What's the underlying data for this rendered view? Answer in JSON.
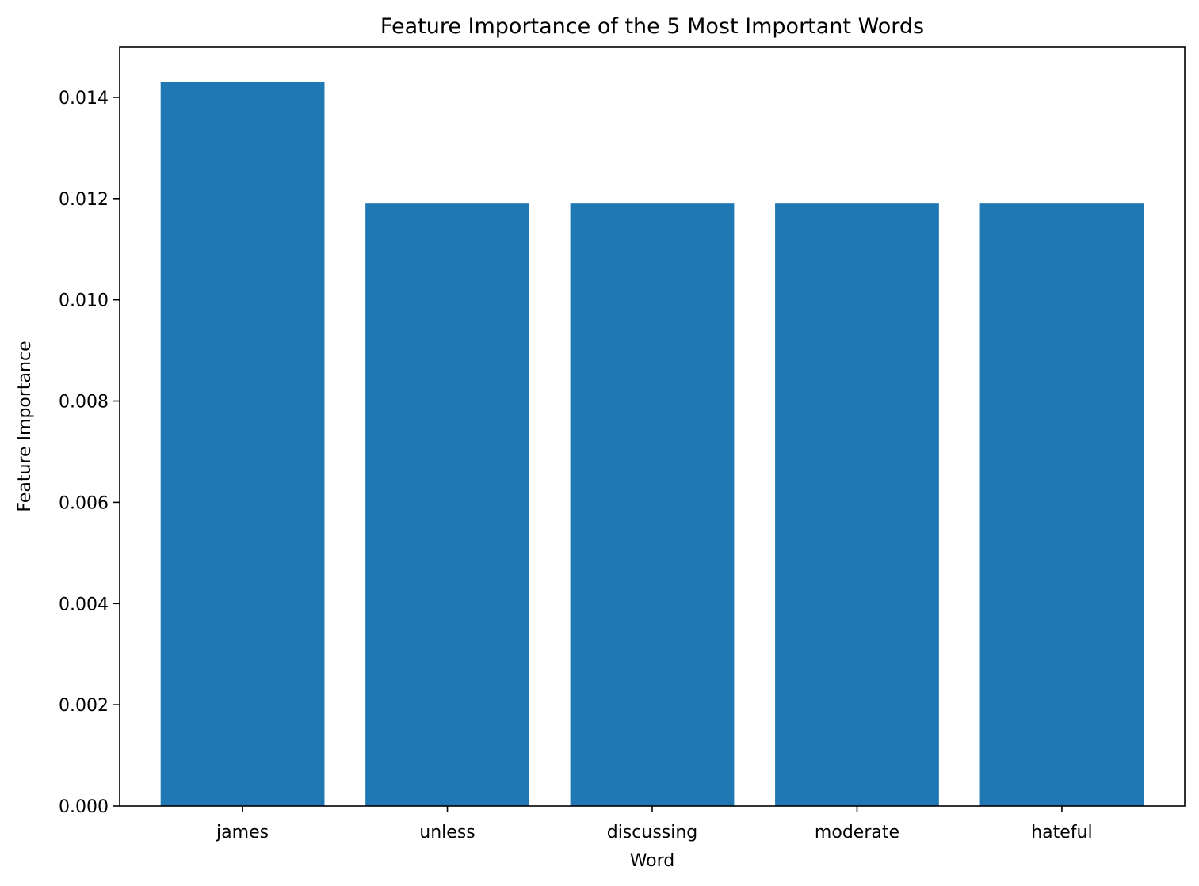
{
  "chart_data": {
    "type": "bar",
    "title": "Feature Importance of the 5 Most Important Words",
    "xlabel": "Word",
    "ylabel": "Feature Importance",
    "categories": [
      "james",
      "unless",
      "discussing",
      "moderate",
      "hateful"
    ],
    "values": [
      0.0143,
      0.0119,
      0.0119,
      0.0119,
      0.0119
    ],
    "ylim": [
      0,
      0.015
    ],
    "yticks": [
      0.0,
      0.002,
      0.004,
      0.006,
      0.008,
      0.01,
      0.012,
      0.014
    ],
    "ytick_labels": [
      "0.000",
      "0.002",
      "0.004",
      "0.006",
      "0.008",
      "0.010",
      "0.012",
      "0.014"
    ],
    "grid": false,
    "legend": "none",
    "colors": {
      "bar": "#1f77b4",
      "axis": "#000000",
      "background": "#ffffff"
    }
  }
}
